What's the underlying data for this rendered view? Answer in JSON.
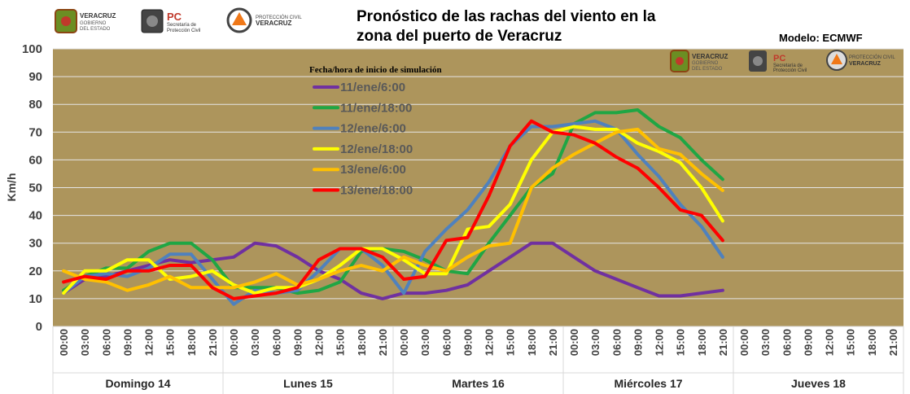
{
  "header": {
    "title_line1": "Pronóstico de las rachas del viento en la",
    "title_line2": "zona del puerto de Veracruz",
    "model": "Modelo: ECMWF"
  },
  "logos": {
    "veracruz": {
      "line1": "VERACRUZ",
      "line2": "GOBIERNO",
      "line3": "DEL ESTADO"
    },
    "pc": {
      "line1": "PC",
      "line2": "Secretaría de",
      "line3": "Protección Civil"
    },
    "pcv": {
      "line1": "PROTECCIÓN CIVIL",
      "line2": "VERACRUZ"
    }
  },
  "colors": {
    "plot_bg": "#AD955C",
    "gridline": "#E5E5E5",
    "axis_text": "#404040"
  },
  "chart_data": {
    "type": "line",
    "title": "Pronóstico de las rachas del viento en la zona del puerto de Veracruz",
    "ylabel": "Km/h",
    "xlabel": "",
    "ylim": [
      0,
      100
    ],
    "yticks": [
      "0",
      "10",
      "20",
      "30",
      "40",
      "50",
      "60",
      "70",
      "80",
      "90",
      "100"
    ],
    "grid": true,
    "legend_title": "Fecha/hora de inicio de simulación",
    "legend_position": "top-left",
    "days": [
      "Domingo 14",
      "Lunes 15",
      "Martes 16",
      "Miércoles 17",
      "Jueves 18"
    ],
    "hours": [
      "00:00",
      "03:00",
      "06:00",
      "09:00",
      "12:00",
      "15:00",
      "18:00",
      "21:00"
    ],
    "series": [
      {
        "name": "11/ene/6:00",
        "color": "#7030A0",
        "values": [
          12,
          17,
          18,
          20,
          22,
          24,
          23,
          24,
          25,
          30,
          29,
          25,
          20,
          17,
          12,
          10,
          12,
          12,
          13,
          15,
          20,
          25,
          30,
          30,
          25,
          20,
          17,
          14,
          11,
          11,
          12,
          13
        ]
      },
      {
        "name": "11/ene/18:00",
        "color": "#1FA644",
        "values": [
          13,
          18,
          21,
          21,
          27,
          30,
          30,
          24,
          14,
          14,
          14,
          12,
          13,
          16,
          27,
          28,
          27,
          24,
          20,
          19,
          30,
          40,
          50,
          55,
          73,
          77,
          77,
          78,
          72,
          68,
          60,
          53
        ]
      },
      {
        "name": "12/ene/6:00",
        "color": "#4F81BD",
        "values": [
          12,
          18,
          19,
          18,
          21,
          26,
          26,
          17,
          8,
          13,
          12,
          13,
          20,
          28,
          28,
          22,
          12,
          27,
          35,
          42,
          52,
          65,
          72,
          72,
          73,
          74,
          71,
          62,
          54,
          44,
          36,
          25
        ]
      },
      {
        "name": "12/ene/18:00",
        "color": "#FFFF00",
        "values": [
          12,
          20,
          20,
          24,
          24,
          17,
          18,
          20,
          15,
          12,
          14,
          14,
          17,
          22,
          28,
          28,
          24,
          19,
          19,
          35,
          36,
          44,
          60,
          70,
          72,
          71,
          71,
          66,
          63,
          59,
          50,
          38
        ]
      },
      {
        "name": "13/ene/6:00",
        "color": "#FFC000",
        "values": [
          20,
          17,
          16,
          13,
          15,
          18,
          14,
          14,
          14,
          16,
          19,
          15,
          17,
          20,
          22,
          20,
          25,
          22,
          20,
          25,
          29,
          30,
          50,
          57,
          62,
          66,
          70,
          71,
          64,
          62,
          55,
          49
        ]
      },
      {
        "name": "13/ene/18:00",
        "color": "#FF0000",
        "values": [
          16,
          18,
          17,
          20,
          20,
          22,
          22,
          14,
          10,
          11,
          12,
          14,
          24,
          28,
          28,
          25,
          17,
          18,
          31,
          32,
          47,
          65,
          74,
          70,
          69,
          66,
          61,
          57,
          50,
          42,
          40,
          31
        ]
      }
    ]
  }
}
